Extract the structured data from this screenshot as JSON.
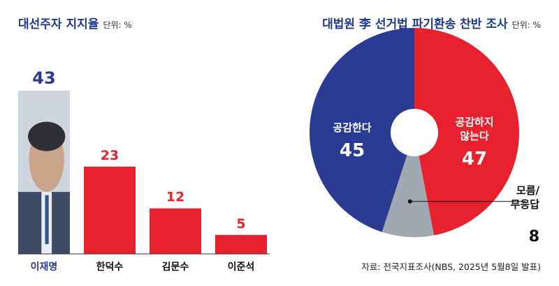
{
  "left_panel": {
    "title": "대선주자 지지율",
    "unit": "단위: %"
  },
  "right_panel": {
    "title": "대법원 李 선거법 파기환송 찬반 조사",
    "unit": "단위: %"
  },
  "source": "자료: 전국지표조사(NBS, 2025년 5월8일 발표)",
  "colors": {
    "blue": "#2b3a92",
    "red": "#e8212e",
    "gray": "#a2a8b2",
    "title_blue": "#1f3a8f"
  },
  "chart_data": [
    {
      "type": "bar",
      "title": "대선주자 지지율",
      "ylabel": "단위: %",
      "categories": [
        "이재명",
        "한덕수",
        "김문수",
        "이준석"
      ],
      "values": [
        43,
        23,
        12,
        5
      ],
      "ylim": [
        0,
        50
      ],
      "colors": [
        "#2b3a92",
        "#e8212e",
        "#e8212e",
        "#e8212e"
      ],
      "grid": false,
      "notes": "first bar is a photo of the candidate"
    },
    {
      "type": "pie",
      "title": "대법원 李 선거법 파기환송 찬반 조사",
      "ylabel": "단위: %",
      "categories": [
        "공감한다",
        "공감하지 않는다",
        "모름/무응답"
      ],
      "values": [
        45,
        47,
        8
      ],
      "colors": [
        "#2b3a92",
        "#e8212e",
        "#a2a8b2"
      ],
      "labels_display": [
        [
          "공감한다"
        ],
        [
          "공감하지",
          "않는다"
        ],
        [
          "모름/",
          "무응답"
        ]
      ]
    }
  ]
}
